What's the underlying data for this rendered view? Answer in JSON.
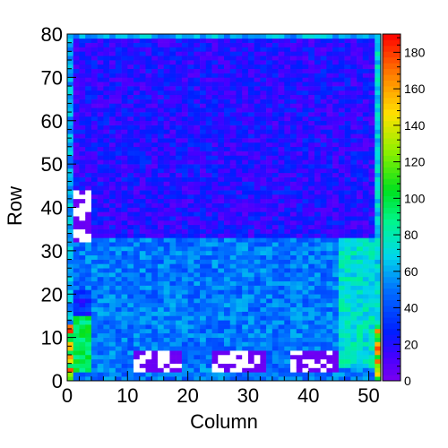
{
  "chart_data": {
    "type": "heatmap",
    "xlabel": "Column",
    "ylabel": "Row",
    "xlim": [
      0,
      52
    ],
    "ylim": [
      0,
      80
    ],
    "x_ticks": [
      0,
      10,
      20,
      30,
      40,
      50
    ],
    "y_ticks": [
      0,
      10,
      20,
      30,
      40,
      50,
      60,
      70,
      80
    ],
    "colorbar": {
      "range": [
        0,
        190
      ],
      "ticks": [
        0,
        20,
        40,
        60,
        80,
        100,
        120,
        140,
        160,
        180
      ],
      "palette": "rainbow (violet-blue-cyan-green-yellow-red)"
    },
    "bins": {
      "columns": 52,
      "rows": 80
    },
    "regions": [
      {
        "columns": [
          0,
          52
        ],
        "rows": [
          33,
          80
        ],
        "typical_value": 20,
        "pattern": "horizontal stripes of alternating blue and cyan"
      },
      {
        "columns": [
          0,
          52
        ],
        "rows": [
          0,
          33
        ],
        "typical_value": 50,
        "pattern": "cyan/teal band with green patches"
      },
      {
        "columns": [
          0,
          1
        ],
        "rows": [
          0,
          80
        ],
        "typical_value": 60,
        "pattern": "left edge column, cyan/green with warm spots near bottom"
      },
      {
        "columns": [
          51,
          52
        ],
        "rows": [
          0,
          80
        ],
        "typical_value": 70,
        "pattern": "right edge column, cyan/green with warm spots near bottom"
      },
      {
        "columns": [
          0,
          52
        ],
        "rows": [
          79,
          80
        ],
        "typical_value": 60,
        "pattern": "top edge row, cyan/green"
      },
      {
        "columns": [
          1,
          4
        ],
        "rows": [
          2,
          15
        ],
        "typical_value": 95,
        "pattern": "green block"
      },
      {
        "columns": [
          1,
          4
        ],
        "rows": [
          15,
          21
        ],
        "typical_value": 30,
        "pattern": "blue block"
      },
      {
        "columns": [
          1,
          4
        ],
        "rows": [
          32,
          44
        ],
        "typical_value": 5,
        "pattern": "violet/white low-occupancy block"
      },
      {
        "columns": [
          11,
          19
        ],
        "rows": [
          2,
          7
        ],
        "typical_value": 3,
        "pattern": "violet/white low-occupancy block"
      },
      {
        "columns": [
          24,
          33
        ],
        "rows": [
          2,
          7
        ],
        "typical_value": 3,
        "pattern": "violet/white low-occupancy block"
      },
      {
        "columns": [
          37,
          45
        ],
        "rows": [
          2,
          7
        ],
        "typical_value": 3,
        "pattern": "violet/white low-occupancy block"
      },
      {
        "columns": [
          45,
          51
        ],
        "rows": [
          3,
          33
        ],
        "typical_value": 75,
        "pattern": "cyan/green band"
      }
    ]
  }
}
